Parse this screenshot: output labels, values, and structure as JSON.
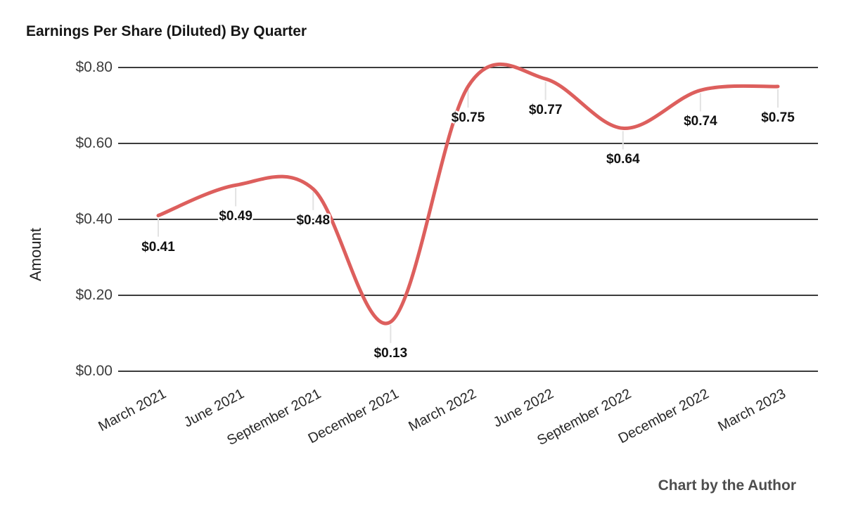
{
  "title": "Earnings Per Share (Diluted) By Quarter",
  "footer": "Chart by the Author",
  "chart_data": {
    "type": "line",
    "title": "Earnings Per Share (Diluted) By Quarter",
    "xlabel": "",
    "ylabel": "Amount",
    "categories": [
      "March 2021",
      "June 2021",
      "September 2021",
      "December 2021",
      "March 2022",
      "June 2022",
      "September 2022",
      "December 2022",
      "March 2023"
    ],
    "values": [
      0.41,
      0.49,
      0.48,
      0.13,
      0.75,
      0.77,
      0.64,
      0.74,
      0.75
    ],
    "point_labels": [
      "$0.41",
      "$0.49",
      "$0.48",
      "$0.13",
      "$0.75",
      "$0.77",
      "$0.64",
      "$0.74",
      "$0.75"
    ],
    "y_ticks": [
      {
        "value": 0.0,
        "label": "$0.00"
      },
      {
        "value": 0.2,
        "label": "$0.20"
      },
      {
        "value": 0.4,
        "label": "$0.40"
      },
      {
        "value": 0.6,
        "label": "$0.60"
      },
      {
        "value": 0.8,
        "label": "$0.80"
      }
    ],
    "ylim": [
      0.0,
      0.8
    ],
    "smooth": true,
    "legend": "none",
    "grid": "horizontal",
    "line_color": "#dd5f5d",
    "gridline_color": "#3c3c3c",
    "callout_color": "#e2e2e2",
    "background_color": "#ffffff"
  }
}
